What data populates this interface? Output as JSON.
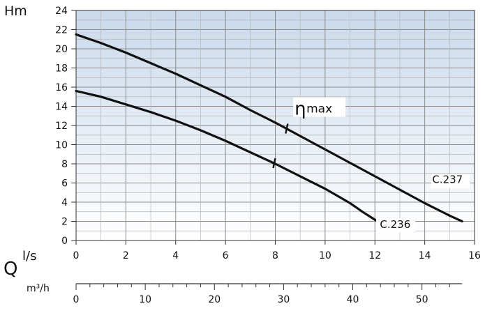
{
  "chart_data": {
    "type": "line",
    "ylabel": "Hm",
    "xlabel_primary": "l/s",
    "flow_symbol": "Q",
    "xlabel_secondary": "m³/h",
    "xlim": [
      0,
      16
    ],
    "ylim": [
      0,
      24
    ],
    "x_ticks": [
      0,
      2,
      4,
      6,
      8,
      10,
      12,
      14,
      16
    ],
    "y_ticks": [
      0,
      2,
      4,
      6,
      8,
      10,
      12,
      14,
      16,
      18,
      20,
      22,
      24
    ],
    "secondary_ticks": [
      0,
      10,
      20,
      30,
      40,
      50
    ],
    "secondary_range": [
      0,
      57.6
    ],
    "grid": true,
    "series": [
      {
        "name": "C.237",
        "x": [
          0,
          1,
          2,
          3,
          4,
          5,
          6,
          7,
          8,
          9,
          10,
          11,
          12,
          13,
          14,
          15,
          15.5
        ],
        "y": [
          21.5,
          20.6,
          19.6,
          18.5,
          17.4,
          16.2,
          15.0,
          13.6,
          12.3,
          10.9,
          9.5,
          8.1,
          6.7,
          5.3,
          3.9,
          2.6,
          2.0
        ]
      },
      {
        "name": "C.236",
        "x": [
          0,
          1,
          2,
          3,
          4,
          5,
          6,
          7,
          8,
          9,
          10,
          11,
          11.5,
          12.1
        ],
        "y": [
          15.6,
          15.0,
          14.2,
          13.4,
          12.5,
          11.5,
          10.4,
          9.2,
          8.0,
          6.7,
          5.4,
          3.9,
          3.0,
          2.0
        ]
      }
    ],
    "annotations": {
      "eta_symbol": "η",
      "eta_text": "max",
      "eta_marks": [
        {
          "series": "C.237",
          "x": 8.5
        },
        {
          "series": "C.236",
          "x": 8.0
        }
      ]
    }
  }
}
